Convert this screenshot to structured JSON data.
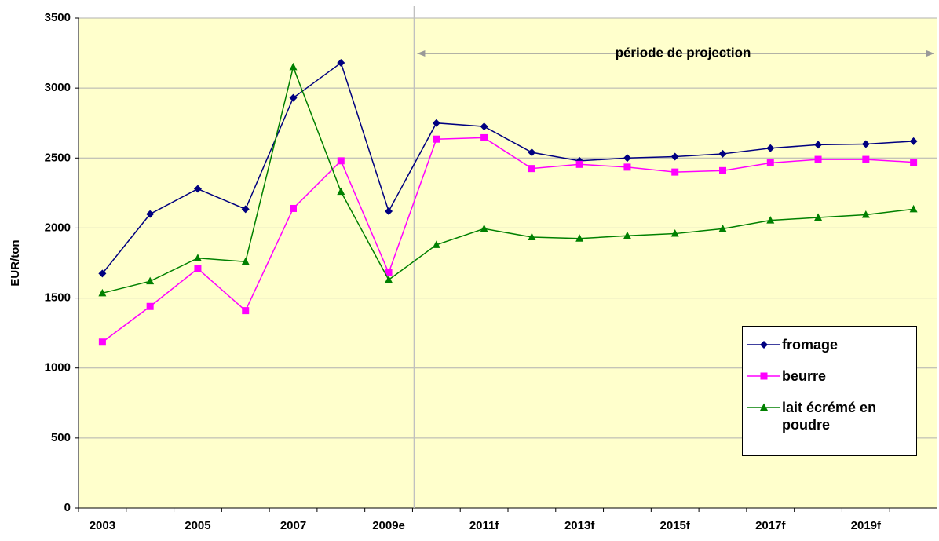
{
  "chart_data": {
    "type": "line",
    "y_label": "EUR/ton",
    "annotation": "période de projection",
    "categories": [
      "2003",
      null,
      "2005",
      null,
      "2007",
      null,
      "2009e",
      null,
      "2011f",
      null,
      "2013f",
      null,
      "2015f",
      null,
      "2017f",
      null,
      "2019f",
      null
    ],
    "series": [
      {
        "name": "fromage",
        "color": "#000080",
        "marker": "diamond",
        "values": [
          1675,
          2100,
          2280,
          2135,
          2930,
          3180,
          2120,
          2750,
          2725,
          2540,
          2480,
          2500,
          2510,
          2530,
          2570,
          2595,
          2600,
          2620
        ]
      },
      {
        "name": "beurre",
        "color": "#ff00ff",
        "marker": "square",
        "values": [
          1185,
          1440,
          1710,
          1410,
          2140,
          2480,
          1680,
          2635,
          2645,
          2425,
          2455,
          2435,
          2400,
          2410,
          2465,
          2490,
          2490,
          2470
        ]
      },
      {
        "name": "lait écrémé en poudre",
        "color": "#008000",
        "marker": "triangle",
        "values": [
          1535,
          1620,
          1785,
          1760,
          3150,
          2260,
          1630,
          1880,
          1995,
          1935,
          1925,
          1945,
          1960,
          1995,
          2055,
          2075,
          2095,
          2135
        ]
      }
    ],
    "ylim": [
      0,
      3500
    ],
    "yticks": [
      0,
      500,
      1000,
      1500,
      2000,
      2500,
      3000,
      3500
    ],
    "grid": true
  }
}
